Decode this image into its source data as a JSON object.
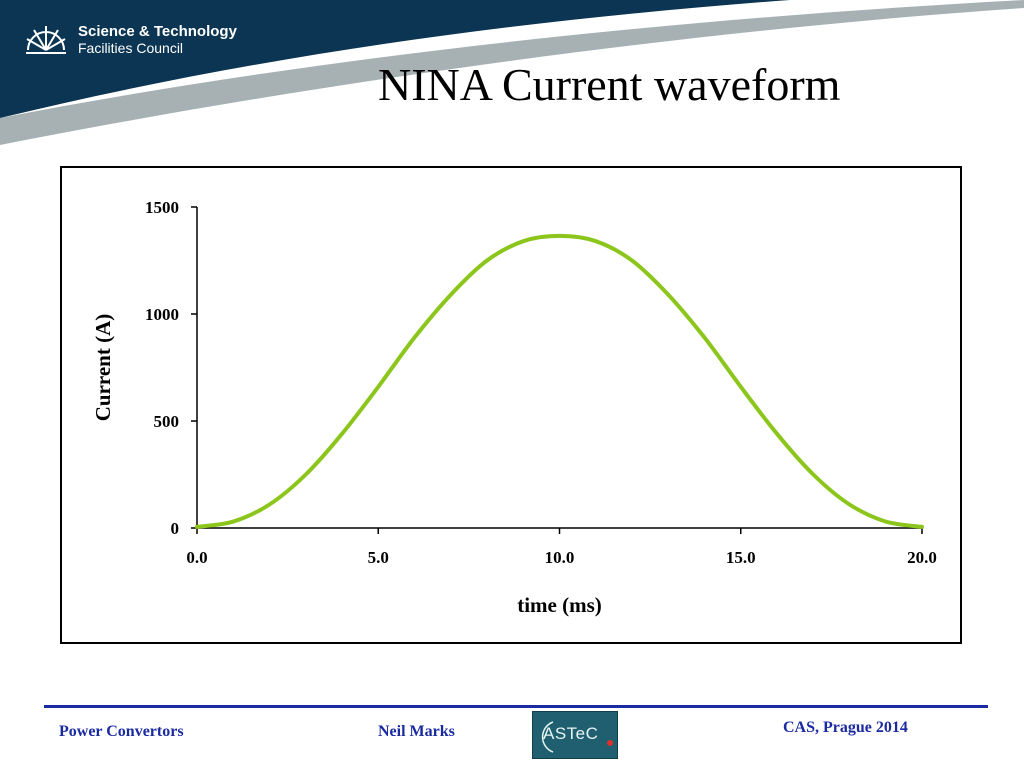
{
  "header": {
    "org_line1": "Science & Technology",
    "org_line2": "Facilities Council",
    "band_color": "#0b3552",
    "swoosh_color": "#a7b1b4"
  },
  "slide": {
    "title": "NINA Current waveform"
  },
  "chart_data": {
    "type": "line",
    "title": "",
    "xlabel": "time (ms)",
    "ylabel": "Current (A)",
    "xlim": [
      0,
      20
    ],
    "ylim": [
      0,
      1500
    ],
    "x_ticks": [
      "0.0",
      "5.0",
      "10.0",
      "15.0",
      "20.0"
    ],
    "y_ticks": [
      "0",
      "500",
      "1000",
      "1500"
    ],
    "grid": false,
    "legend": "none",
    "series": [
      {
        "color": "#8cc61c",
        "x": [
          0,
          1,
          2,
          3,
          4,
          5,
          6,
          7,
          8,
          9,
          10,
          11,
          12,
          13,
          14,
          15,
          16,
          17,
          18,
          19,
          20
        ],
        "y": [
          5,
          30,
          110,
          250,
          440,
          660,
          890,
          1090,
          1250,
          1340,
          1365,
          1340,
          1250,
          1090,
          890,
          660,
          440,
          250,
          110,
          30,
          5
        ]
      }
    ]
  },
  "footer": {
    "left": "Power Convertors",
    "middle": "Neil Marks",
    "right": "CAS, Prague 2014",
    "logo_text": "ASTeC",
    "text_color": "#1a2aa0",
    "rule_color": "#1a2aa0",
    "logo_dot_color": "#e0302a"
  }
}
